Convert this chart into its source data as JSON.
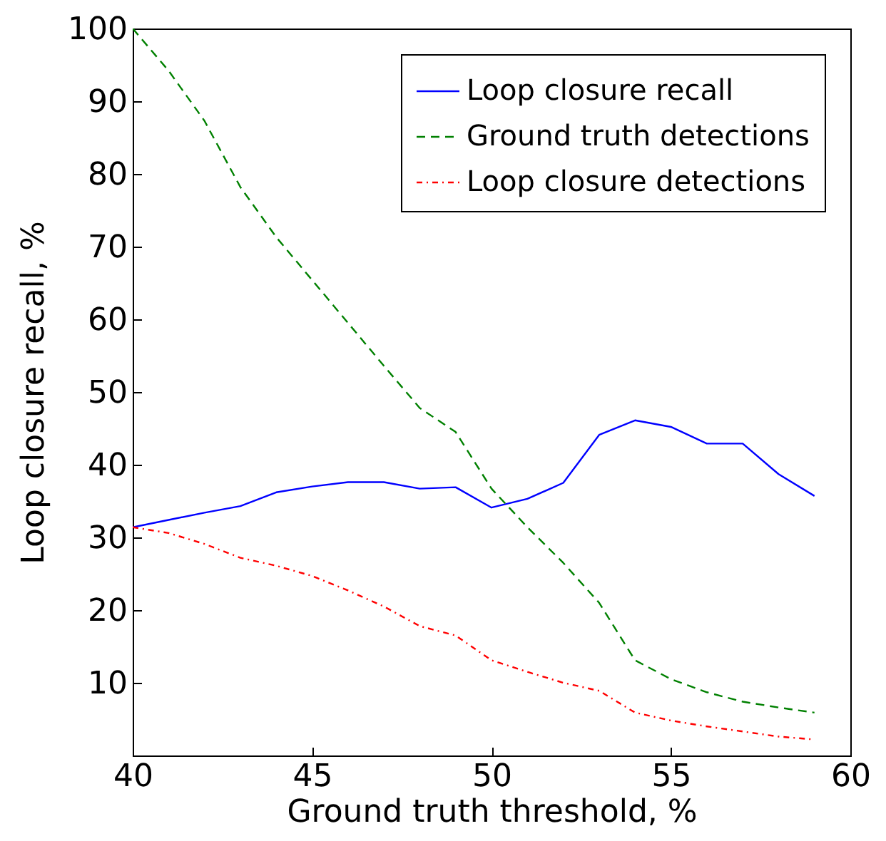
{
  "chart_data": {
    "type": "line",
    "xlabel": "Ground truth threshold, %",
    "ylabel": "Loop closure recall, %",
    "x": [
      40,
      41,
      42,
      43,
      44,
      45,
      46,
      47,
      48,
      49,
      50,
      51,
      52,
      53,
      54,
      55,
      56,
      57,
      58,
      59
    ],
    "xlim": [
      40,
      60
    ],
    "xticks": [
      40,
      45,
      50,
      55,
      60
    ],
    "ylim": [
      0,
      100
    ],
    "yticks": [
      10,
      20,
      30,
      40,
      50,
      60,
      70,
      80,
      90,
      100
    ],
    "legend": "top right",
    "series": [
      {
        "name": "Loop closure recall",
        "color": "#0000ff",
        "line_style": "solid",
        "values": [
          31.4,
          32.4,
          33.4,
          34.3,
          36.2,
          37.0,
          37.6,
          37.6,
          36.7,
          36.9,
          34.1,
          35.3,
          37.5,
          44.1,
          46.1,
          45.2,
          42.9,
          42.9,
          38.7,
          35.7
        ]
      },
      {
        "name": "Ground truth detections",
        "color": "#008000",
        "line_style": "dashed",
        "values": [
          100,
          94.2,
          87.3,
          78.2,
          71.3,
          65.4,
          59.5,
          53.6,
          47.8,
          44.5,
          36.7,
          31.4,
          26.5,
          21.0,
          13.1,
          10.5,
          8.7,
          7.4,
          6.6,
          5.9
        ]
      },
      {
        "name": "Loop closure detections",
        "color": "#ff0000",
        "line_style": "dotted",
        "values": [
          31.4,
          30.6,
          29.1,
          27.2,
          26.1,
          24.7,
          22.7,
          20.5,
          17.8,
          16.5,
          13.1,
          11.5,
          10.0,
          8.9,
          5.9,
          4.8,
          4.0,
          3.3,
          2.6,
          2.2
        ]
      }
    ]
  }
}
